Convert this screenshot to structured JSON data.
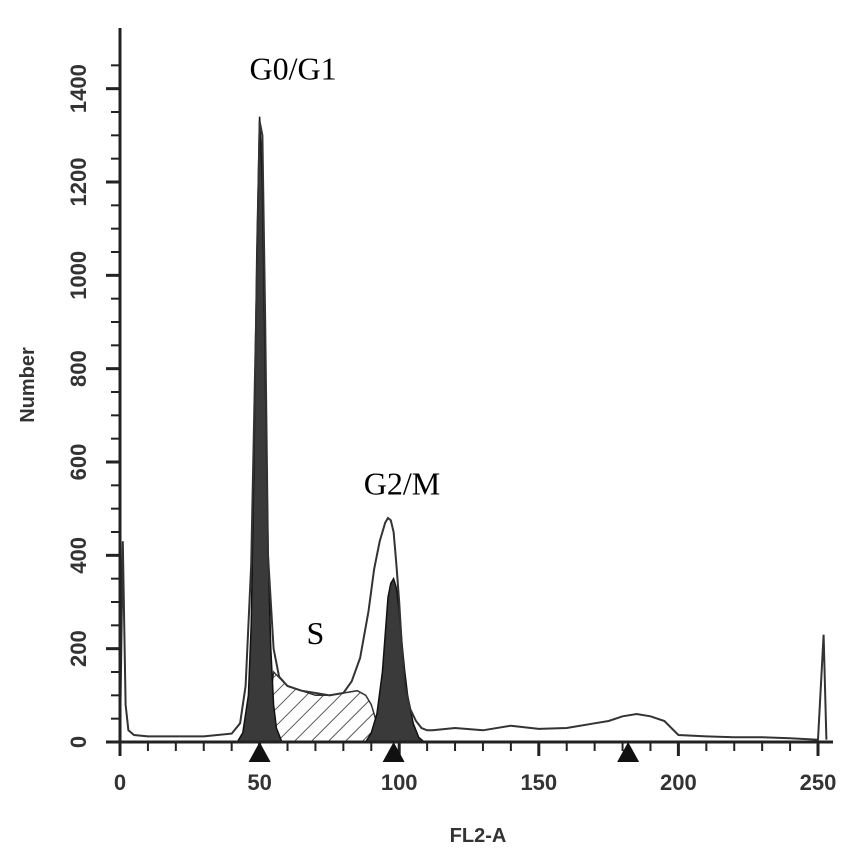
{
  "chart_data": {
    "type": "area",
    "xlabel": "FL2-A",
    "ylabel": "Number",
    "xlim": [
      0,
      255
    ],
    "ylim": [
      0,
      1500
    ],
    "x_ticks": [
      0,
      50,
      100,
      150,
      200,
      250
    ],
    "y_ticks": [
      0,
      200,
      400,
      600,
      800,
      1000,
      1200,
      1400
    ],
    "annotations": [
      {
        "text": "G0/G1",
        "x": 62,
        "y": 1420
      },
      {
        "text": "S",
        "x": 70,
        "y": 210
      },
      {
        "text": "G2/M",
        "x": 101,
        "y": 530
      }
    ],
    "peak_markers_x": [
      50,
      98,
      182
    ],
    "series": [
      {
        "name": "",
        "role": "histogram",
        "x": [
          0,
          1,
          2,
          3,
          5,
          10,
          20,
          30,
          40,
          43,
          45,
          47,
          49,
          50,
          51,
          52,
          53,
          55,
          57,
          60,
          65,
          70,
          75,
          80,
          83,
          86,
          89,
          91,
          93,
          95,
          96,
          97,
          98,
          99,
          100,
          101,
          102,
          104,
          106,
          108,
          110,
          112,
          120,
          130,
          140,
          150,
          160,
          170,
          175,
          180,
          185,
          190,
          195,
          200,
          210,
          220,
          230,
          240,
          250,
          252,
          253
        ],
        "y": [
          5,
          430,
          80,
          25,
          15,
          12,
          12,
          12,
          18,
          40,
          120,
          380,
          980,
          1330,
          1300,
          900,
          400,
          200,
          140,
          120,
          110,
          105,
          100,
          105,
          130,
          180,
          280,
          370,
          430,
          470,
          480,
          475,
          450,
          380,
          300,
          200,
          120,
          70,
          45,
          30,
          25,
          25,
          30,
          25,
          35,
          28,
          30,
          40,
          45,
          55,
          60,
          55,
          45,
          15,
          12,
          10,
          10,
          8,
          5,
          230,
          5
        ]
      },
      {
        "name": "G0/G1",
        "role": "fit",
        "x": [
          42,
          44,
          46,
          47,
          48,
          49,
          50,
          51,
          52,
          53,
          54,
          55,
          56,
          58
        ],
        "y": [
          0,
          20,
          100,
          250,
          600,
          1050,
          1340,
          1200,
          800,
          420,
          200,
          80,
          30,
          0
        ]
      },
      {
        "name": "S",
        "role": "fit",
        "x": [
          52,
          55,
          60,
          65,
          70,
          75,
          80,
          85,
          88,
          90,
          92,
          94
        ],
        "y": [
          0,
          150,
          120,
          110,
          100,
          100,
          105,
          110,
          100,
          80,
          40,
          0
        ]
      },
      {
        "name": "G2/M",
        "role": "fit",
        "x": [
          88,
          90,
          92,
          94,
          95,
          96,
          97,
          98,
          99,
          100,
          101,
          102,
          103,
          105,
          107,
          109
        ],
        "y": [
          0,
          20,
          60,
          150,
          230,
          310,
          340,
          350,
          330,
          280,
          210,
          150,
          100,
          40,
          10,
          0
        ]
      }
    ]
  }
}
